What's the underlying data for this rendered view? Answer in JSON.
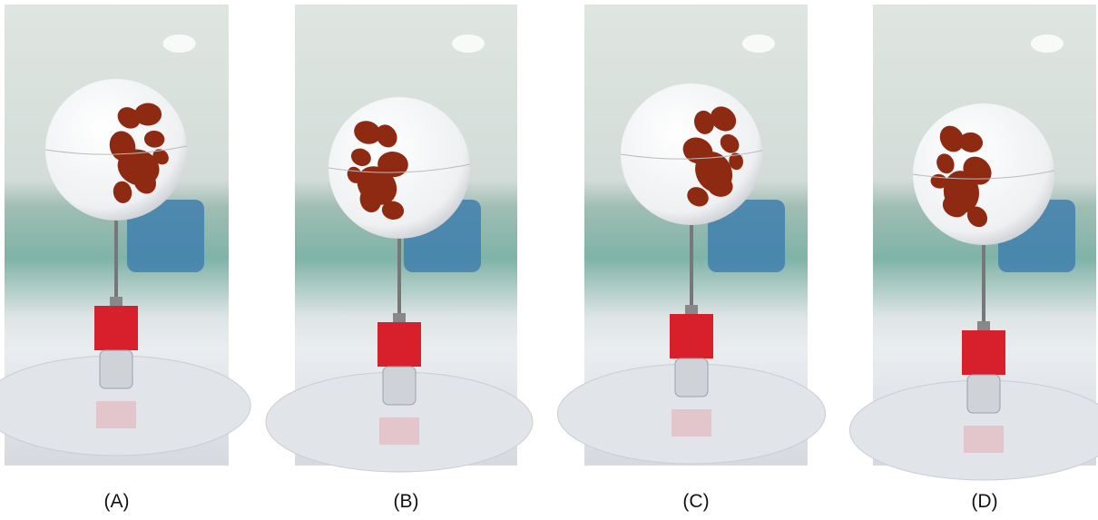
{
  "panels": [
    {
      "label": "(A)"
    },
    {
      "label": "(B)"
    },
    {
      "label": "(C)"
    },
    {
      "label": "(D)"
    }
  ]
}
